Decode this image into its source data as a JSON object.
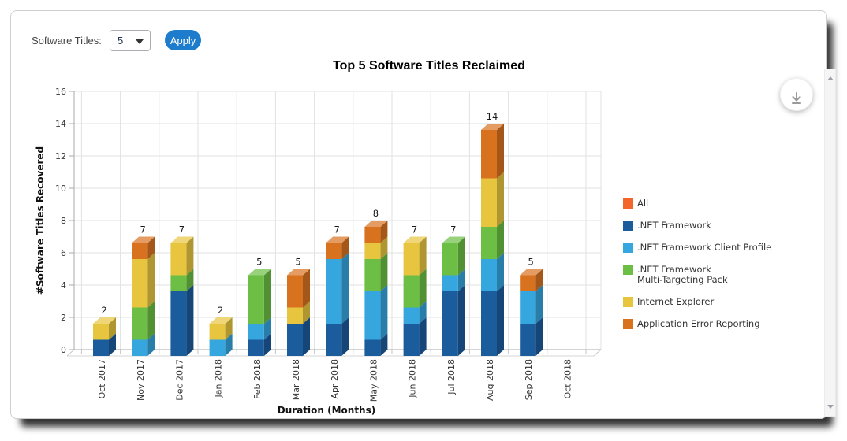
{
  "toolbar": {
    "label": "Software Titles:",
    "dropdown_value": "5",
    "apply_label": "Apply"
  },
  "chart": {
    "title": "Top 5 Software Titles Reclaimed",
    "x_axis_title": "Duration (Months)",
    "y_axis_title": "#Software Titles Recovered"
  },
  "legend": {
    "position": "right",
    "items": [
      {
        "label": "All",
        "color": "#f4652c"
      },
      {
        "label": ".NET Framework",
        "color": "#1b5c9c"
      },
      {
        "label": ".NET Framework Client Profile",
        "color": "#36a6de"
      },
      {
        "label": ".NET Framework\nMulti-Targeting Pack",
        "color": "#6cbe45"
      },
      {
        "label": "Internet Explorer",
        "color": "#e7c53f"
      },
      {
        "label": "Application Error Reporting",
        "color": "#d8721f"
      }
    ]
  },
  "icons": {
    "download": "download-icon",
    "dropdown_caret": "chevron-down-icon",
    "scroll_up": "scroll-up-arrow",
    "scroll_down": "scroll-down-arrow"
  },
  "chart_data": {
    "type": "bar",
    "stacked": true,
    "title": "Top 5 Software Titles Reclaimed",
    "xlabel": "Duration (Months)",
    "ylabel": "#Software Titles Recovered",
    "ylim": [
      0,
      16
    ],
    "y_ticks": [
      0,
      2,
      4,
      6,
      8,
      10,
      12,
      14,
      16
    ],
    "grid": true,
    "effect_3d": true,
    "legend_position": "right",
    "categories": [
      "Oct 2017",
      "Nov 2017",
      "Dec 2017",
      "Jan 2018",
      "Feb 2018",
      "Mar 2018",
      "Apr 2018",
      "May 2018",
      "Jun 2018",
      "Jul 2018",
      "Aug 2018",
      "Sep 2018",
      "Oct 2018"
    ],
    "series": [
      {
        "name": ".NET Framework",
        "color": "#1b5c9c",
        "values": [
          1,
          0,
          4,
          0,
          1,
          2,
          2,
          1,
          2,
          4,
          4,
          2,
          0
        ]
      },
      {
        "name": ".NET Framework Client Profile",
        "color": "#36a6de",
        "values": [
          0,
          1,
          0,
          1,
          1,
          0,
          4,
          3,
          1,
          1,
          2,
          2,
          0
        ]
      },
      {
        "name": ".NET Framework Multi-Targeting Pack",
        "color": "#6cbe45",
        "values": [
          0,
          2,
          1,
          0,
          3,
          0,
          0,
          2,
          2,
          2,
          2,
          0,
          0
        ]
      },
      {
        "name": "Internet Explorer",
        "color": "#e7c53f",
        "values": [
          1,
          3,
          2,
          1,
          0,
          1,
          0,
          1,
          2,
          0,
          3,
          0,
          0
        ]
      },
      {
        "name": "Application Error Reporting",
        "color": "#d8721f",
        "values": [
          0,
          1,
          0,
          0,
          0,
          2,
          1,
          1,
          0,
          0,
          3,
          1,
          0
        ]
      }
    ],
    "totals": [
      2,
      7,
      7,
      2,
      5,
      5,
      7,
      8,
      7,
      7,
      14,
      5,
      0
    ]
  }
}
